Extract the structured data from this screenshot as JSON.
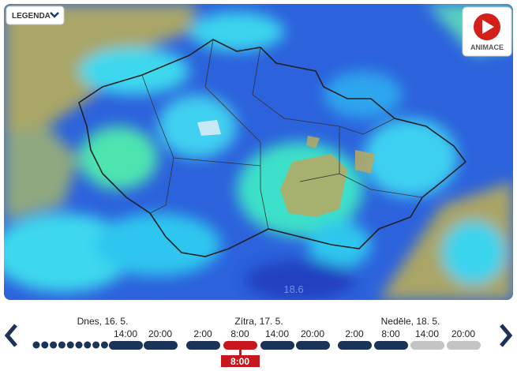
{
  "controls": {
    "legend_button": "LEGENDA",
    "animation_button": "ANIMACE"
  },
  "map": {
    "labels": [
      "18.6"
    ]
  },
  "timeline": {
    "days": [
      {
        "label": "Dnes, 16. 5.",
        "slots": [
          "14:00",
          "20:00"
        ]
      },
      {
        "label": "Zítra, 17. 5.",
        "slots": [
          "2:00",
          "8:00",
          "14:00",
          "20:00"
        ]
      },
      {
        "label": "Neděle, 18. 5.",
        "slots": [
          "2:00",
          "8:00",
          "14:00",
          "20:00"
        ]
      }
    ],
    "selected": "8:00"
  }
}
